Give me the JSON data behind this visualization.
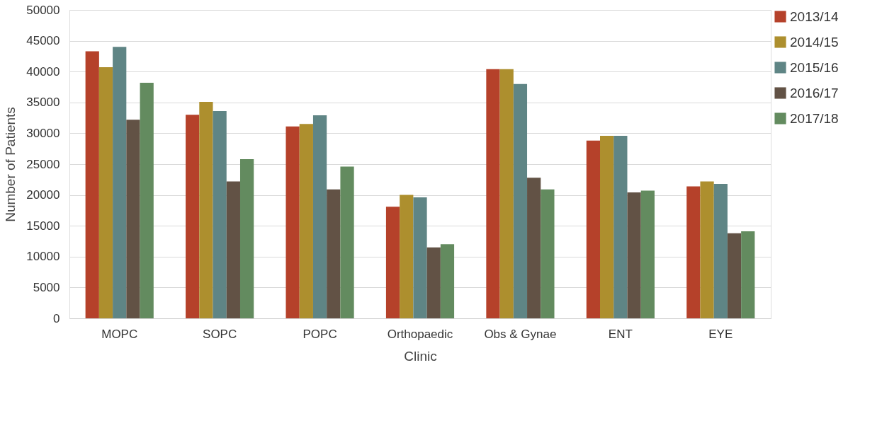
{
  "chart_data": {
    "type": "bar",
    "xlabel": "Clinic",
    "ylabel": "Number of Patients",
    "categories": [
      "MOPC",
      "SOPC",
      "POPC",
      "Orthopaedic",
      "Obs & Gynae",
      "ENT",
      "EYE"
    ],
    "series": [
      {
        "name": "2013/14",
        "color": "#b5412a",
        "values": [
          43300,
          33000,
          31100,
          18100,
          40400,
          28800,
          21400
        ]
      },
      {
        "name": "2014/15",
        "color": "#ad8f2e",
        "values": [
          40700,
          35100,
          31500,
          20000,
          40400,
          29600,
          22200
        ]
      },
      {
        "name": "2015/16",
        "color": "#5f8585",
        "values": [
          44000,
          33600,
          32900,
          19600,
          38000,
          29600,
          21800
        ]
      },
      {
        "name": "2016/17",
        "color": "#625245",
        "values": [
          32200,
          22200,
          20900,
          11500,
          22800,
          20400,
          13800
        ]
      },
      {
        "name": "2017/18",
        "color": "#638b5f",
        "values": [
          38200,
          25800,
          24600,
          12000,
          20900,
          20700,
          14100
        ]
      }
    ],
    "ylim": [
      0,
      50000
    ],
    "yticks": [
      0,
      5000,
      10000,
      15000,
      20000,
      25000,
      30000,
      35000,
      40000,
      45000,
      50000
    ],
    "grid": "y",
    "legend": "right"
  }
}
